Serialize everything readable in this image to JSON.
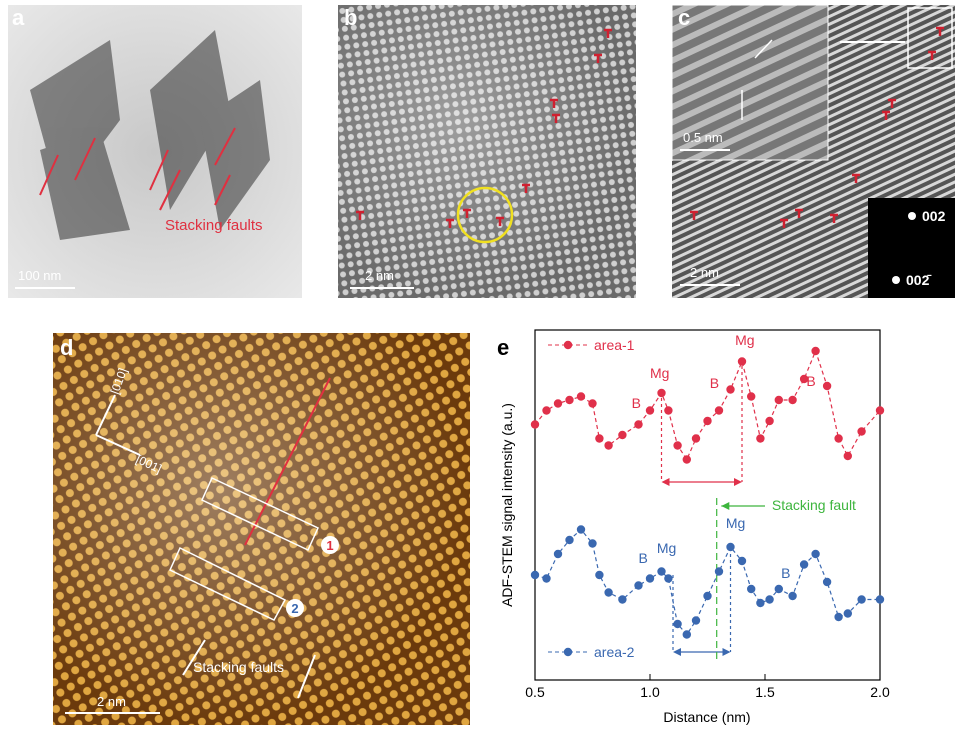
{
  "panels": {
    "a": {
      "letter": "a",
      "scale": "100 nm",
      "annotation": "Stacking faults"
    },
    "b": {
      "letter": "b",
      "scale": "2 nm"
    },
    "c": {
      "letter": "c",
      "inset_scale": "0.5 nm",
      "scale": "2 nm",
      "spots": [
        "002",
        "002̄"
      ]
    },
    "d": {
      "letter": "d",
      "directions": [
        "[010]",
        "[001]"
      ],
      "areas": [
        "1",
        "2"
      ],
      "annotation": "Stacking faults",
      "scale": "2 nm"
    },
    "e": {
      "letter": "e"
    }
  },
  "chart_data": {
    "type": "line",
    "x_label": "Distance (nm)",
    "y_label": "ADF-STEM signal intensity (a.u.)",
    "x": [
      0.5,
      0.55,
      0.6,
      0.65,
      0.7,
      0.75,
      0.78,
      0.82,
      0.88,
      0.95,
      1.0,
      1.05,
      1.08,
      1.12,
      1.16,
      1.2,
      1.25,
      1.3,
      1.35,
      1.4,
      1.44,
      1.48,
      1.52,
      1.56,
      1.62,
      1.67,
      1.72,
      1.77,
      1.82,
      1.86,
      1.92,
      2.0
    ],
    "series": [
      {
        "name": "area-1",
        "color": "#e0304a",
        "values": [
          73,
          77,
          79,
          80,
          81,
          79,
          69,
          67,
          70,
          73,
          77,
          82,
          77,
          67,
          63,
          69,
          74,
          77,
          83,
          91,
          81,
          69,
          74,
          80,
          80,
          86,
          94,
          84,
          69,
          64,
          71,
          77
        ]
      },
      {
        "name": "area-2",
        "color": "#3a68b0",
        "values": [
          30,
          29,
          36,
          40,
          43,
          39,
          30,
          25,
          23,
          27,
          29,
          31,
          29,
          16,
          13,
          17,
          24,
          31,
          38,
          34,
          26,
          22,
          23,
          26,
          24,
          33,
          36,
          28,
          18,
          19,
          23,
          23
        ]
      }
    ],
    "annotations": [
      "Mg",
      "Mg",
      "B",
      "B",
      "B",
      "B",
      "Mg",
      "Mg",
      "B",
      "Stacking fault"
    ],
    "xlim": [
      0.5,
      2.0
    ],
    "xticks": [
      0.5,
      {
        "value": 1,
        "label": "1.0"
      },
      1.5,
      {
        "value": 2,
        "label": "2.0"
      }
    ],
    "ylim": [
      0,
      100
    ]
  }
}
